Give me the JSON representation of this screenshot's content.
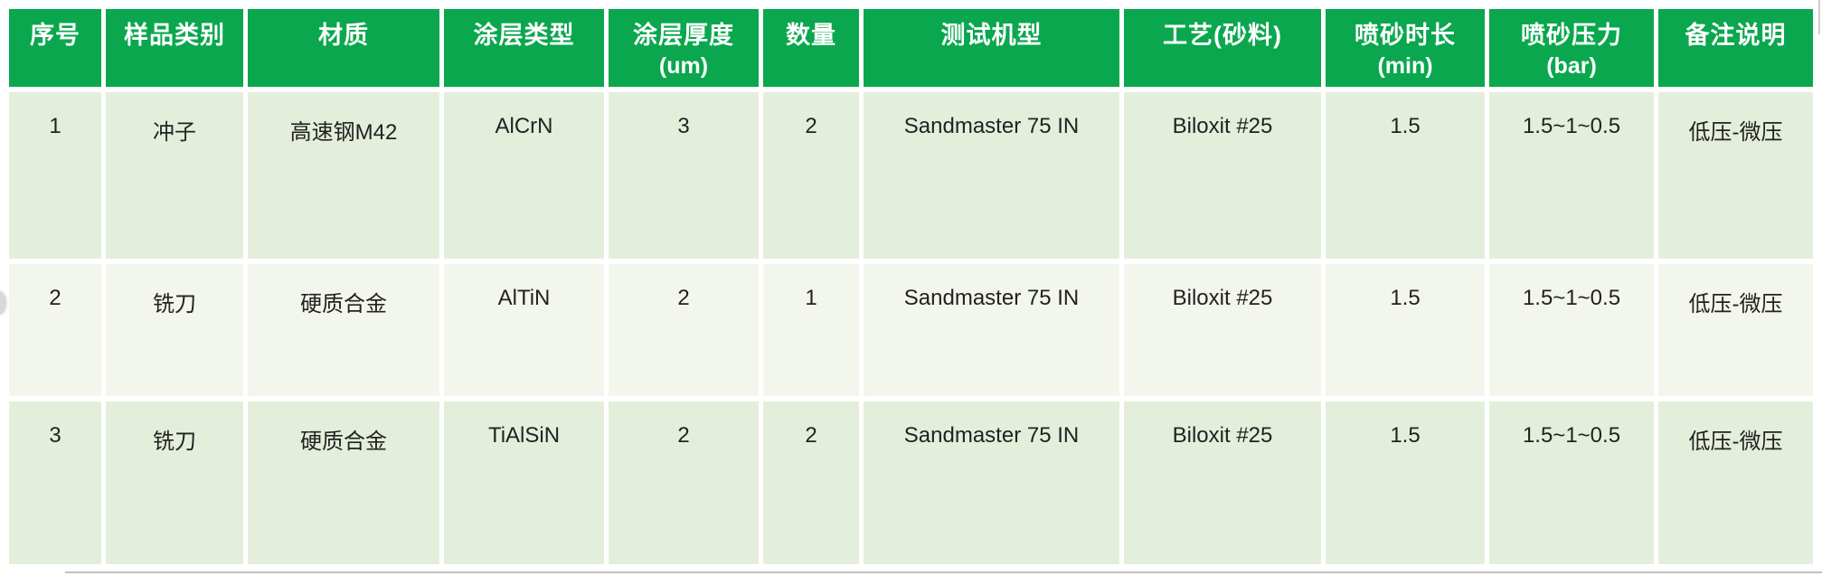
{
  "colors": {
    "header_bg": "#0aa74e",
    "header_text": "#ffffff",
    "row_odd_bg": "#e4efdb",
    "row_even_bg": "#f2f6ec",
    "body_text": "#222222",
    "gutter": "#ffffff"
  },
  "table": {
    "columns": [
      {
        "label": "序号",
        "sub": ""
      },
      {
        "label": "样品类别",
        "sub": ""
      },
      {
        "label": "材质",
        "sub": ""
      },
      {
        "label": "涂层类型",
        "sub": ""
      },
      {
        "label": "涂层厚度",
        "sub": "(um)"
      },
      {
        "label": "数量",
        "sub": ""
      },
      {
        "label": "测试机型",
        "sub": ""
      },
      {
        "label": "工艺(砂料)",
        "sub": ""
      },
      {
        "label": "喷砂时长",
        "sub": "(min)"
      },
      {
        "label": "喷砂压力",
        "sub": "(bar)"
      },
      {
        "label": "备注说明",
        "sub": ""
      }
    ],
    "rows": [
      [
        "1",
        "冲子",
        "高速钢M42",
        "AlCrN",
        "3",
        "2",
        "Sandmaster 75 IN",
        "Biloxit #25",
        "1.5",
        "1.5~1~0.5",
        "低压-微压"
      ],
      [
        "2",
        "铣刀",
        "硬质合金",
        "AlTiN",
        "2",
        "1",
        "Sandmaster 75 IN",
        "Biloxit #25",
        "1.5",
        "1.5~1~0.5",
        "低压-微压"
      ],
      [
        "3",
        "铣刀",
        "硬质合金",
        "TiAlSiN",
        "2",
        "2",
        "Sandmaster 75 IN",
        "Biloxit #25",
        "1.5",
        "1.5~1~0.5",
        "低压-微压"
      ]
    ]
  }
}
